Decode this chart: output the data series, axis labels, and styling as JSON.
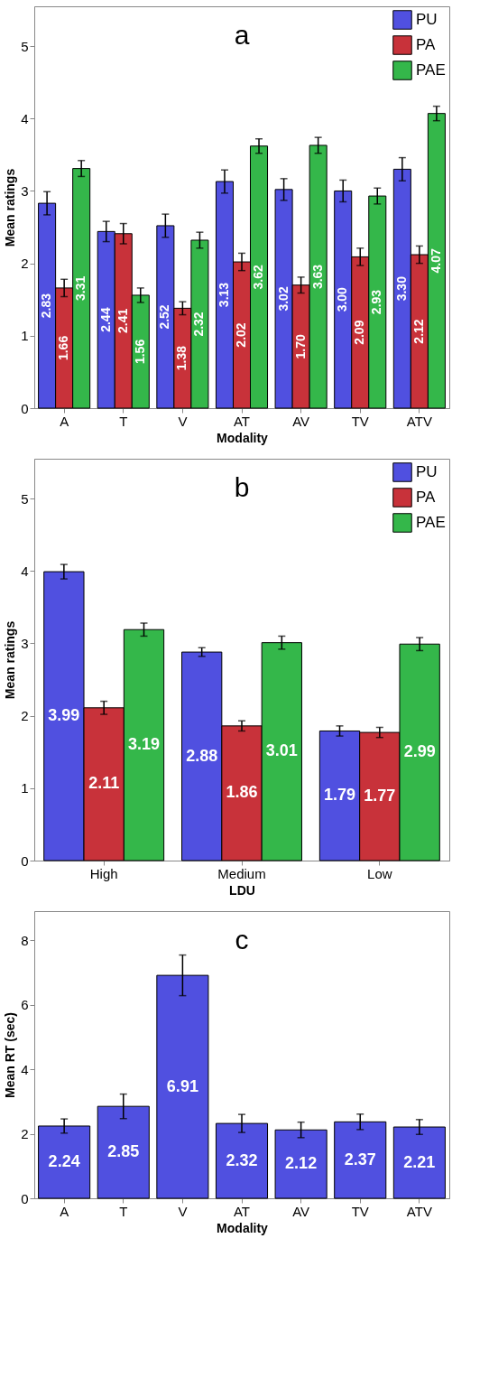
{
  "chart_data": [
    {
      "type": "bar",
      "title": "a",
      "xlabel": "Modality",
      "ylabel": "Mean ratings",
      "categories": [
        "A",
        "T",
        "V",
        "AT",
        "AV",
        "TV",
        "ATV"
      ],
      "series": [
        {
          "name": "PU",
          "color": "#5050e0",
          "values": [
            2.83,
            2.44,
            2.52,
            3.13,
            3.02,
            3.0,
            3.3
          ],
          "value_labels": [
            "2.83",
            "2.44",
            "2.52",
            "3.13",
            "3.02",
            "3.00",
            "3.30"
          ],
          "errors": [
            0.16,
            0.14,
            0.16,
            0.16,
            0.15,
            0.15,
            0.16
          ]
        },
        {
          "name": "PA",
          "color": "#c8323a",
          "values": [
            1.66,
            2.41,
            1.38,
            2.02,
            1.7,
            2.09,
            2.12
          ],
          "value_labels": [
            "1.66",
            "2.41",
            "1.38",
            "2.02",
            "1.70",
            "2.09",
            "2.12"
          ],
          "errors": [
            0.12,
            0.14,
            0.09,
            0.12,
            0.11,
            0.12,
            0.12
          ]
        },
        {
          "name": "PAE",
          "color": "#34b74a",
          "values": [
            3.31,
            1.56,
            2.32,
            3.62,
            3.63,
            2.93,
            4.07
          ],
          "value_labels": [
            "3.31",
            "1.56",
            "2.32",
            "3.62",
            "3.63",
            "2.93",
            "4.07"
          ],
          "errors": [
            0.11,
            0.1,
            0.11,
            0.1,
            0.11,
            0.11,
            0.1
          ]
        }
      ],
      "ylim": [
        0,
        5.55
      ],
      "yticks": [
        0,
        1,
        2,
        3,
        4,
        5
      ],
      "legend": "top right"
    },
    {
      "type": "bar",
      "title": "b",
      "xlabel": "LDU",
      "ylabel": "Mean ratings",
      "categories": [
        "High",
        "Medium",
        "Low"
      ],
      "series": [
        {
          "name": "PU",
          "color": "#5050e0",
          "values": [
            3.99,
            2.88,
            1.79
          ],
          "value_labels": [
            "3.99",
            "2.88",
            "1.79"
          ],
          "errors": [
            0.1,
            0.06,
            0.07
          ]
        },
        {
          "name": "PA",
          "color": "#c8323a",
          "values": [
            2.11,
            1.86,
            1.77
          ],
          "value_labels": [
            "2.11",
            "1.86",
            "1.77"
          ],
          "errors": [
            0.09,
            0.07,
            0.07
          ]
        },
        {
          "name": "PAE",
          "color": "#34b74a",
          "values": [
            3.19,
            3.01,
            2.99
          ],
          "value_labels": [
            "3.19",
            "3.01",
            "2.99"
          ],
          "errors": [
            0.09,
            0.09,
            0.09
          ]
        }
      ],
      "ylim": [
        0,
        5.55
      ],
      "yticks": [
        0,
        1,
        2,
        3,
        4,
        5
      ],
      "legend": "top right"
    },
    {
      "type": "bar",
      "title": "c",
      "xlabel": "Modality",
      "ylabel": "Mean RT (sec)",
      "categories": [
        "A",
        "T",
        "V",
        "AT",
        "AV",
        "TV",
        "ATV"
      ],
      "series": [
        {
          "color": "#5050e0",
          "values": [
            2.24,
            2.85,
            6.91,
            2.32,
            2.12,
            2.37,
            2.21
          ],
          "value_labels": [
            "2.24",
            "2.85",
            "6.91",
            "2.32",
            "2.12",
            "2.37",
            "2.21"
          ],
          "errors": [
            0.22,
            0.38,
            0.63,
            0.28,
            0.24,
            0.24,
            0.23
          ]
        }
      ],
      "ylim": [
        0,
        8.9
      ],
      "yticks": [
        0,
        2,
        4,
        6,
        8
      ]
    }
  ]
}
